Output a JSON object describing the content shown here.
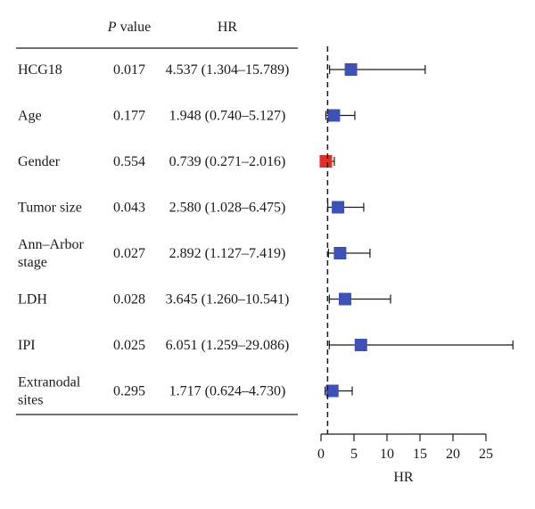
{
  "chart_data": {
    "type": "forest",
    "columns": {
      "pvalue_prefix": "P",
      "pvalue_suffix": " value",
      "hr_header": "HR"
    },
    "rows": [
      {
        "label_lines": [
          "HCG18"
        ],
        "p": "0.017",
        "hr_text": "4.537 (1.304–15.789)",
        "hr": 4.537,
        "lo": 1.304,
        "hi": 15.789,
        "color": "#3f51b5"
      },
      {
        "label_lines": [
          "Age"
        ],
        "p": "0.177",
        "hr_text": "1.948 (0.740–5.127)",
        "hr": 1.948,
        "lo": 0.74,
        "hi": 5.127,
        "color": "#3f51b5"
      },
      {
        "label_lines": [
          "Gender"
        ],
        "p": "0.554",
        "hr_text": "0.739 (0.271–2.016)",
        "hr": 0.739,
        "lo": 0.271,
        "hi": 2.016,
        "color": "#e0302a"
      },
      {
        "label_lines": [
          "Tumor size"
        ],
        "p": "0.043",
        "hr_text": "2.580 (1.028–6.475)",
        "hr": 2.58,
        "lo": 1.028,
        "hi": 6.475,
        "color": "#3f51b5"
      },
      {
        "label_lines": [
          "Ann–Arbor",
          "stage"
        ],
        "p": "0.027",
        "hr_text": "2.892 (1.127–7.419)",
        "hr": 2.892,
        "lo": 1.127,
        "hi": 7.419,
        "color": "#3f51b5"
      },
      {
        "label_lines": [
          "LDH"
        ],
        "p": "0.028",
        "hr_text": "3.645 (1.260–10.541)",
        "hr": 3.645,
        "lo": 1.26,
        "hi": 10.541,
        "color": "#3f51b5"
      },
      {
        "label_lines": [
          "IPI"
        ],
        "p": "0.025",
        "hr_text": "6.051 (1.259–29.086)",
        "hr": 6.051,
        "lo": 1.259,
        "hi": 29.086,
        "color": "#3f51b5"
      },
      {
        "label_lines": [
          "Extranodal",
          "sites"
        ],
        "p": "0.295",
        "hr_text": "1.717 (0.624–4.730)",
        "hr": 1.717,
        "lo": 0.624,
        "hi": 4.73,
        "color": "#3f51b5"
      }
    ],
    "x_axis": {
      "label": "HR",
      "ticks": [
        0,
        5,
        10,
        15,
        20,
        25
      ],
      "range": [
        0,
        29
      ],
      "reference_line": 1
    }
  }
}
